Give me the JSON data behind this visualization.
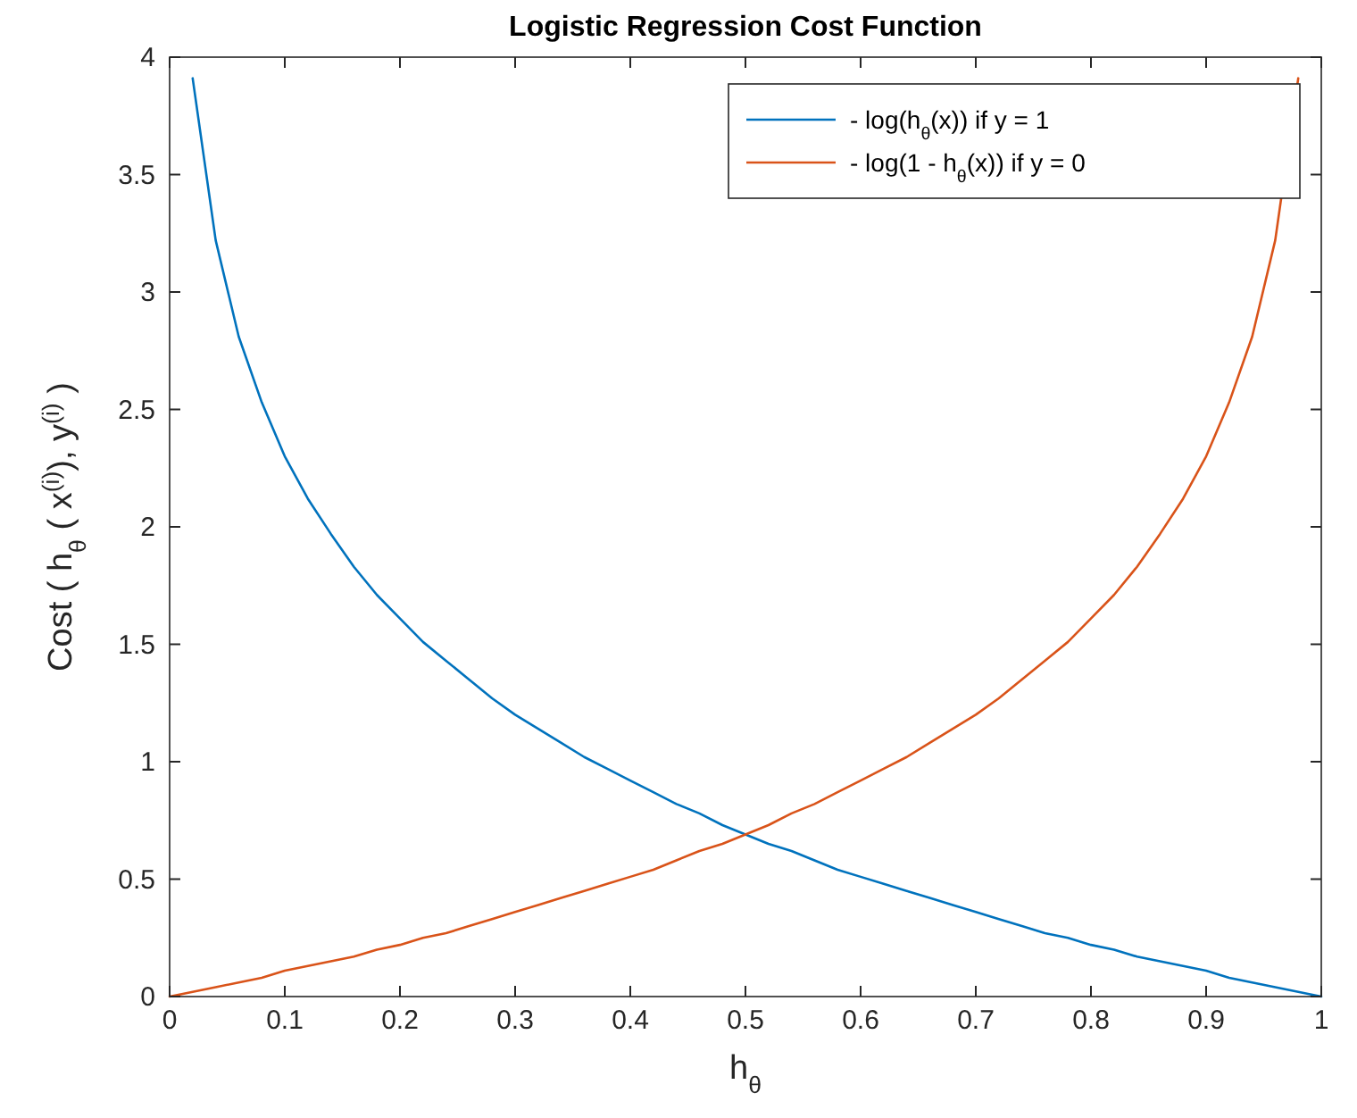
{
  "chart_data": {
    "type": "line",
    "title": "Logistic Regression Cost Function",
    "xlabel": "h$_{θ}$",
    "ylabel": "Cost ( h$_{θ}$ ( x$^{(i)}$), y$^{(i)}$ )",
    "series": [
      {
        "name": "- log(h$_{θ}$(x))   if  y = 1",
        "color": "#0072bd",
        "x": [
          0.02,
          0.04,
          0.06,
          0.08,
          0.1,
          0.12,
          0.14,
          0.16,
          0.18,
          0.2,
          0.22,
          0.24,
          0.26,
          0.28,
          0.3,
          0.32,
          0.34,
          0.36,
          0.38,
          0.4,
          0.42,
          0.44,
          0.46,
          0.48,
          0.5,
          0.52,
          0.54,
          0.56,
          0.58,
          0.6,
          0.62,
          0.64,
          0.66,
          0.68,
          0.7,
          0.72,
          0.74,
          0.76,
          0.78,
          0.8,
          0.82,
          0.84,
          0.86,
          0.88,
          0.9,
          0.92,
          0.94,
          0.96,
          0.98,
          1
        ],
        "values": [
          3.91,
          3.22,
          2.81,
          2.53,
          2.3,
          2.12,
          1.97,
          1.83,
          1.71,
          1.61,
          1.51,
          1.43,
          1.35,
          1.27,
          1.2,
          1.14,
          1.08,
          1.02,
          0.97,
          0.92,
          0.87,
          0.82,
          0.78,
          0.73,
          0.69,
          0.65,
          0.62,
          0.58,
          0.54,
          0.51,
          0.48,
          0.45,
          0.42,
          0.39,
          0.36,
          0.33,
          0.3,
          0.27,
          0.25,
          0.22,
          0.2,
          0.17,
          0.15,
          0.13,
          0.11,
          0.08,
          0.06,
          0.04,
          0.02,
          0
        ]
      },
      {
        "name": "- log(1 - h$_{θ}$(x))   if  y = 0",
        "color": "#d95319",
        "x": [
          0,
          0.02,
          0.04,
          0.06,
          0.08,
          0.1,
          0.12,
          0.14,
          0.16,
          0.18,
          0.2,
          0.22,
          0.24,
          0.26,
          0.28,
          0.3,
          0.32,
          0.34,
          0.36,
          0.38,
          0.4,
          0.42,
          0.44,
          0.46,
          0.48,
          0.5,
          0.52,
          0.54,
          0.56,
          0.58,
          0.6,
          0.62,
          0.64,
          0.66,
          0.68,
          0.7,
          0.72,
          0.74,
          0.76,
          0.78,
          0.8,
          0.82,
          0.84,
          0.86,
          0.88,
          0.9,
          0.92,
          0.94,
          0.96,
          0.98
        ],
        "values": [
          0,
          0.02,
          0.04,
          0.06,
          0.08,
          0.11,
          0.13,
          0.15,
          0.17,
          0.2,
          0.22,
          0.25,
          0.27,
          0.3,
          0.33,
          0.36,
          0.39,
          0.42,
          0.45,
          0.48,
          0.51,
          0.54,
          0.58,
          0.62,
          0.65,
          0.69,
          0.73,
          0.78,
          0.82,
          0.87,
          0.92,
          0.97,
          1.02,
          1.08,
          1.14,
          1.2,
          1.27,
          1.35,
          1.43,
          1.51,
          1.61,
          1.71,
          1.83,
          1.97,
          2.12,
          2.3,
          2.53,
          2.81,
          3.22,
          3.91
        ]
      }
    ],
    "xlim": [
      0,
      1
    ],
    "xticks": [
      0,
      0.1,
      0.2,
      0.3,
      0.4,
      0.5,
      0.6,
      0.7,
      0.8,
      0.9,
      1
    ],
    "ylim": [
      0,
      4
    ],
    "yticks": [
      0,
      0.5,
      1,
      1.5,
      2,
      2.5,
      3,
      3.5,
      4
    ],
    "grid": false,
    "legend": "top right",
    "marker": "none",
    "line_style": "solid"
  }
}
